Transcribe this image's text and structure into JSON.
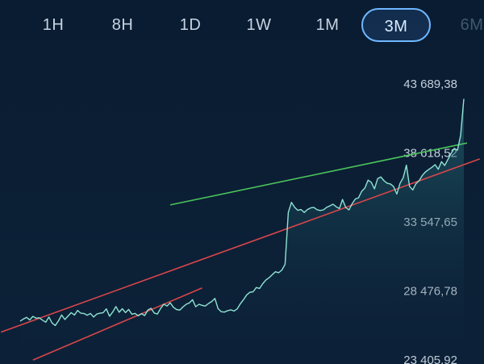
{
  "timeframes": [
    {
      "label": "1H",
      "active": false
    },
    {
      "label": "8H",
      "active": false
    },
    {
      "label": "1D",
      "active": false
    },
    {
      "label": "1W",
      "active": false
    },
    {
      "label": "1M",
      "active": false
    },
    {
      "label": "3M",
      "active": true
    },
    {
      "label": "6M",
      "active": false
    }
  ],
  "chart_data": {
    "type": "line",
    "y_ticks": [
      "43 689,38",
      "38 618,52",
      "33 547,65",
      "28 476,78",
      "23 405,92"
    ],
    "ylim": [
      23405.92,
      43689.38
    ],
    "x_points": 140,
    "line_color": "#8ee3d4",
    "series": [
      {
        "values": [
          26260,
          26420,
          26540,
          26350,
          26610,
          26480,
          26500,
          26330,
          26180,
          26560,
          26120,
          25940,
          26280,
          26710,
          26380,
          26640,
          26880,
          26710,
          27050,
          26840,
          26820,
          26690,
          26830,
          26560,
          26780,
          26840,
          26880,
          27160,
          26620,
          26930,
          27330,
          26910,
          27170,
          26890,
          27120,
          26770,
          26830,
          26650,
          26810,
          26670,
          27080,
          27200,
          26850,
          26780,
          27190,
          27510,
          27370,
          27610,
          27280,
          27110,
          27070,
          27300,
          27500,
          27600,
          27830,
          27320,
          27500,
          27420,
          27370,
          27560,
          27700,
          27930,
          27180,
          26950,
          26920,
          27030,
          27090,
          27000,
          27160,
          27540,
          27850,
          28190,
          28380,
          28420,
          28730,
          28660,
          29010,
          29290,
          29450,
          29680,
          29890,
          29820,
          30020,
          30440,
          34250,
          34990,
          34620,
          34400,
          34460,
          34250,
          34460,
          34580,
          34620,
          34450,
          34390,
          34440,
          34620,
          34730,
          34850,
          34670,
          34530,
          35200,
          34610,
          34430,
          34880,
          35240,
          35320,
          35800,
          36040,
          36620,
          36460,
          35980,
          36740,
          36860,
          36570,
          36390,
          36340,
          36150,
          35600,
          36380,
          36790,
          37720,
          36160,
          35900,
          36360,
          36580,
          36970,
          37230,
          37410,
          37560,
          37760,
          37420,
          37980,
          37700,
          38130,
          38590,
          38950,
          38820,
          39910,
          42590
        ]
      }
    ],
    "green_line": {
      "from": [
        47,
        34800
      ],
      "to": [
        140,
        39350
      ]
    },
    "red_upper": {
      "from": [
        0,
        25960
      ],
      "to": [
        140,
        37840
      ]
    },
    "red_lower": {
      "from": [
        4,
        23400
      ],
      "to": [
        57,
        28700
      ]
    }
  }
}
